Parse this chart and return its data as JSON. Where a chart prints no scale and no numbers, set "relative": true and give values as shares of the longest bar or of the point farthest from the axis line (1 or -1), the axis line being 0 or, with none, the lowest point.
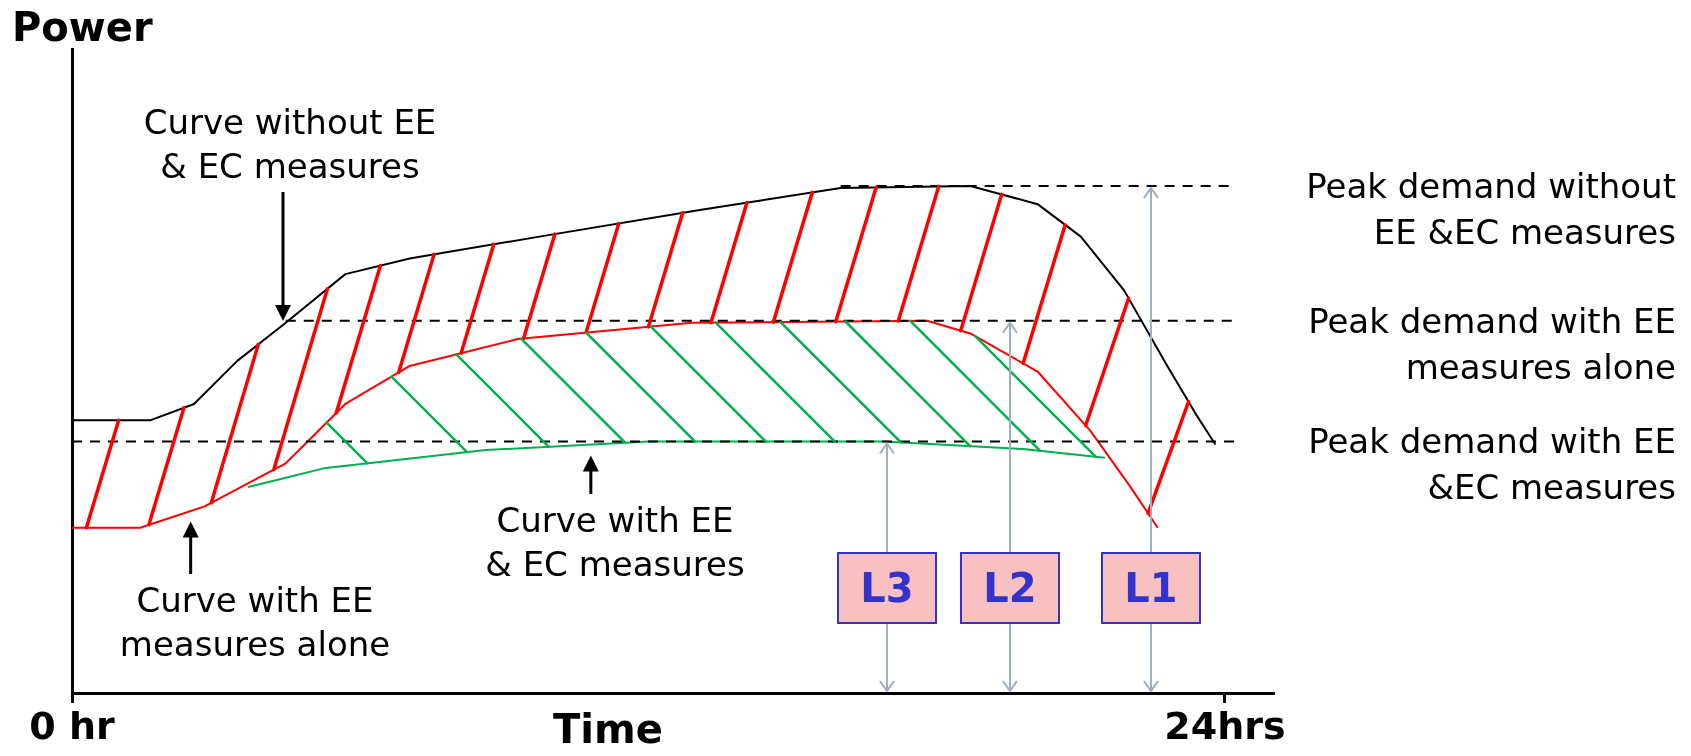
{
  "chart_data": {
    "type": "line",
    "relative": true,
    "xlabel": "Time",
    "ylabel": "Power",
    "xlim": [
      0,
      25
    ],
    "xticks": [
      {
        "value": 0,
        "label": "0 hr"
      },
      {
        "value": 24,
        "label": "24hrs"
      }
    ],
    "tick_labels": "x",
    "marker": "none",
    "line_style": "solid",
    "series": [
      {
        "color": "#000000",
        "x": [
          0,
          1.64,
          2.54,
          3.44,
          4.45,
          5.69,
          7.03,
          9.73,
          13.1,
          16.0,
          18.7,
          20.1,
          21.0,
          21.9,
          22.8,
          23.4,
          23.8
        ],
        "values": [
          0.538,
          0.538,
          0.57,
          0.655,
          0.73,
          0.826,
          0.857,
          0.9,
          0.953,
          0.996,
          1.0,
          0.964,
          0.9,
          0.794,
          0.645,
          0.549,
          0.49
        ]
      },
      {
        "color": "#ff0000",
        "x": [
          0,
          1.42,
          2.76,
          4.45,
          5.69,
          7.03,
          9.28,
          12.9,
          17.8,
          18.7,
          20.1,
          21.2,
          22.0,
          22.6
        ],
        "values": [
          0.326,
          0.326,
          0.368,
          0.453,
          0.57,
          0.645,
          0.698,
          0.73,
          0.734,
          0.709,
          0.634,
          0.517,
          0.411,
          0.326
        ]
      },
      {
        "color": "#00b050",
        "x": [
          3.66,
          5.24,
          8.61,
          12.0,
          16.9,
          19.8,
          21.5
        ],
        "values": [
          0.406,
          0.443,
          0.479,
          0.496,
          0.496,
          0.481,
          0.464
        ]
      }
    ],
    "ref_lines": [
      {
        "axis": "y",
        "value": 1.0,
        "label": "Peak demand without EE &EC measures",
        "line_style": "dashed",
        "color": "#000000"
      },
      {
        "axis": "y",
        "value": 0.734,
        "label": "Peak demand with EE measures alone",
        "line_style": "dashed",
        "color": "#000000"
      },
      {
        "axis": "y",
        "value": 0.496,
        "label": "Peak demand with EE &EC measures",
        "line_style": "dashed",
        "color": "#000000"
      }
    ],
    "annotations": [
      "Curve without EE & EC measures",
      {
        "text": "Curve with EE measures alone",
        "x": 2.47,
        "y": 0.35
      },
      {
        "text": "Curve with EE & EC measures",
        "x": 10.8,
        "y": 0.48
      },
      "L3",
      "L2",
      "L1"
    ]
  }
}
